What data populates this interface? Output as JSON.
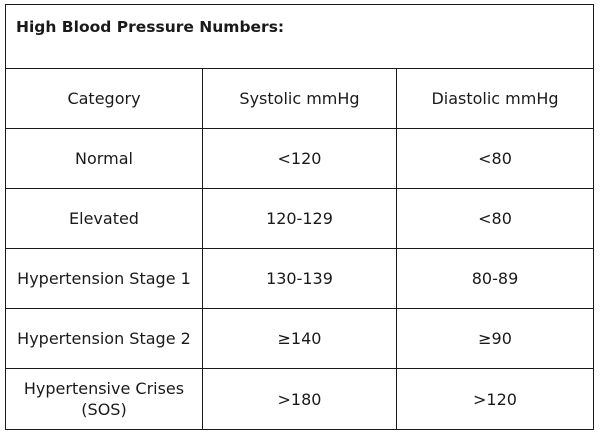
{
  "title": "High Blood Pressure Numbers:",
  "columns": [
    "Category",
    "Systolic mmHg",
    "Diastolic mmHg"
  ],
  "rows": [
    [
      "Normal",
      "<120",
      "<80"
    ],
    [
      "Elevated",
      "120-129",
      "<80"
    ],
    [
      "Hypertension Stage 1",
      "130-139",
      "80-89"
    ],
    [
      "Hypertension Stage 2",
      "≥140",
      "≥90"
    ],
    [
      "Hypertensive Crises (SOS)",
      ">180",
      ">120"
    ]
  ]
}
